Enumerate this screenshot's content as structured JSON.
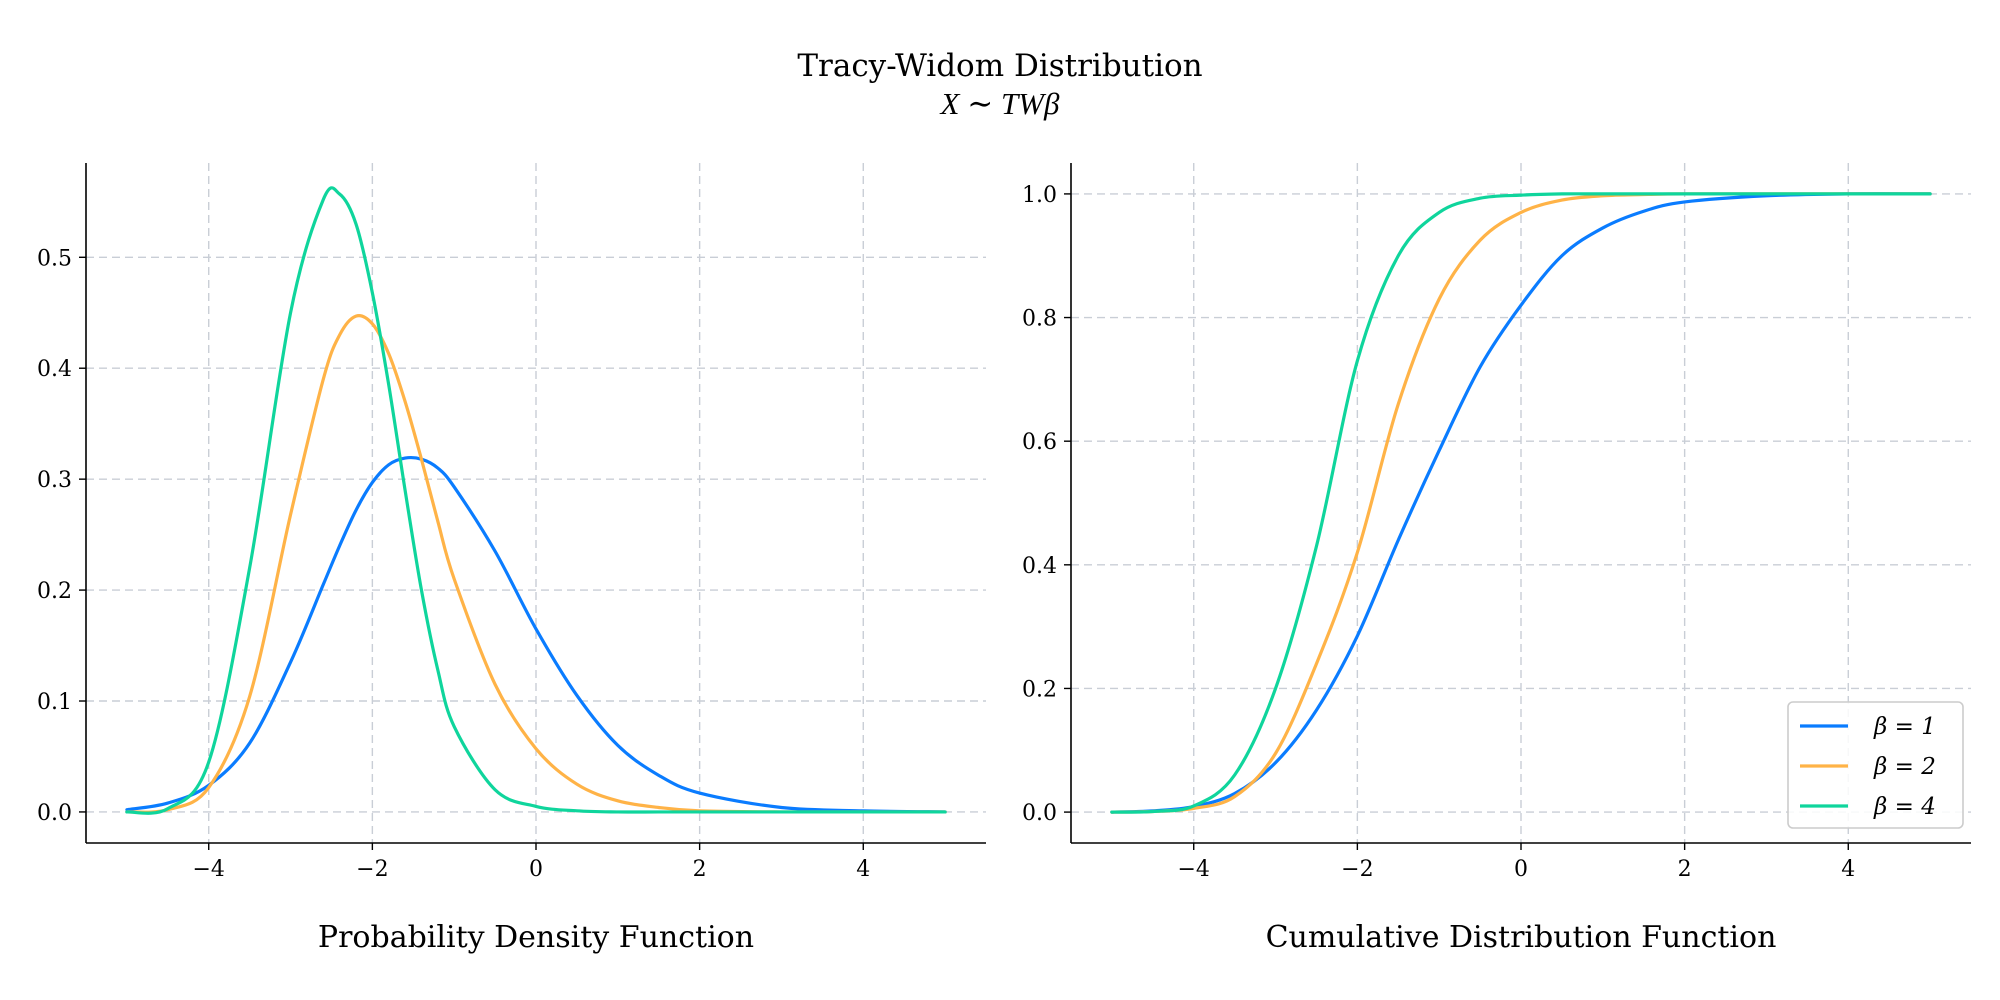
{
  "figure": {
    "title": "Tracy-Widom Distribution",
    "subtitle": "X ∼ TWβ"
  },
  "colors": {
    "beta1": "#0a7cff",
    "beta2": "#ffb347",
    "beta4": "#0fd59c",
    "grid": "#c9ced6",
    "axis": "#000000"
  },
  "legend": {
    "placement": "lower-right",
    "entries": [
      {
        "label": "β = 1",
        "color": "#0a7cff"
      },
      {
        "label": "β = 2",
        "color": "#ffb347"
      },
      {
        "label": "β = 4",
        "color": "#0fd59c"
      }
    ]
  },
  "chart_data": [
    {
      "type": "line",
      "title": "",
      "xlabel": "Probability Density Function",
      "ylabel": "",
      "xlim": [
        -5.5,
        5.5
      ],
      "ylim": [
        -0.028,
        0.585
      ],
      "xticks": [
        -4,
        -2,
        0,
        2,
        4
      ],
      "xtick_labels": [
        "−4",
        "−2",
        "0",
        "2",
        "4"
      ],
      "yticks": [
        0.0,
        0.1,
        0.2,
        0.3,
        0.4,
        0.5
      ],
      "ytick_labels": [
        "0.0",
        "0.1",
        "0.2",
        "0.3",
        "0.4",
        "0.5"
      ],
      "grid": true,
      "x": [
        -5.0,
        -4.5,
        -4.0,
        -3.5,
        -3.0,
        -2.6,
        -2.4,
        -2.2,
        -2.0,
        -1.8,
        -1.6,
        -1.4,
        -1.2,
        -1.0,
        -0.5,
        0.0,
        0.5,
        1.0,
        1.5,
        2.0,
        3.0,
        4.0,
        5.0
      ],
      "series": [
        {
          "name": "β = 1",
          "color": "#0a7cff",
          "values": [
            0.002,
            0.008,
            0.024,
            0.062,
            0.135,
            0.205,
            0.24,
            0.272,
            0.297,
            0.313,
            0.319,
            0.318,
            0.31,
            0.293,
            0.235,
            0.165,
            0.105,
            0.06,
            0.033,
            0.017,
            0.004,
            0.001,
            0.0
          ]
        },
        {
          "name": "β = 2",
          "color": "#ffb347",
          "values": [
            0.0,
            0.002,
            0.022,
            0.104,
            0.268,
            0.39,
            0.43,
            0.447,
            0.44,
            0.413,
            0.37,
            0.318,
            0.262,
            0.21,
            0.115,
            0.057,
            0.025,
            0.01,
            0.004,
            0.001,
            0.0,
            0.0,
            0.0
          ]
        },
        {
          "name": "β = 4",
          "color": "#0fd59c",
          "values": [
            0.0,
            0.003,
            0.045,
            0.22,
            0.45,
            0.552,
            0.557,
            0.53,
            0.468,
            0.385,
            0.29,
            0.2,
            0.128,
            0.077,
            0.02,
            0.005,
            0.001,
            0.0,
            0.0,
            0.0,
            0.0,
            0.0,
            0.0
          ]
        }
      ]
    },
    {
      "type": "line",
      "title": "",
      "xlabel": "Cumulative Distribution Function",
      "ylabel": "",
      "xlim": [
        -5.5,
        5.5
      ],
      "ylim": [
        -0.05,
        1.05
      ],
      "xticks": [
        -4,
        -2,
        0,
        2,
        4
      ],
      "xtick_labels": [
        "−4",
        "−2",
        "0",
        "2",
        "4"
      ],
      "yticks": [
        0.0,
        0.2,
        0.4,
        0.6,
        0.8,
        1.0
      ],
      "ytick_labels": [
        "0.0",
        "0.2",
        "0.4",
        "0.6",
        "0.8",
        "1.0"
      ],
      "grid": true,
      "x": [
        -5.0,
        -4.5,
        -4.0,
        -3.5,
        -3.0,
        -2.5,
        -2.0,
        -1.5,
        -1.0,
        -0.5,
        0.0,
        0.5,
        1.0,
        1.5,
        2.0,
        3.0,
        4.0,
        5.0
      ],
      "series": [
        {
          "name": "β = 1",
          "color": "#0a7cff",
          "values": [
            0.0,
            0.002,
            0.009,
            0.03,
            0.08,
            0.165,
            0.285,
            0.44,
            0.585,
            0.72,
            0.82,
            0.9,
            0.945,
            0.972,
            0.987,
            0.997,
            1.0,
            1.0
          ]
        },
        {
          "name": "β = 2",
          "color": "#ffb347",
          "values": [
            0.0,
            0.001,
            0.006,
            0.025,
            0.095,
            0.24,
            0.42,
            0.66,
            0.83,
            0.925,
            0.97,
            0.99,
            0.997,
            0.999,
            1.0,
            1.0,
            1.0,
            1.0
          ]
        },
        {
          "name": "β = 4",
          "color": "#0fd59c",
          "values": [
            0.0,
            0.001,
            0.01,
            0.06,
            0.2,
            0.43,
            0.73,
            0.9,
            0.97,
            0.993,
            0.998,
            1.0,
            1.0,
            1.0,
            1.0,
            1.0,
            1.0,
            1.0
          ]
        }
      ]
    }
  ]
}
